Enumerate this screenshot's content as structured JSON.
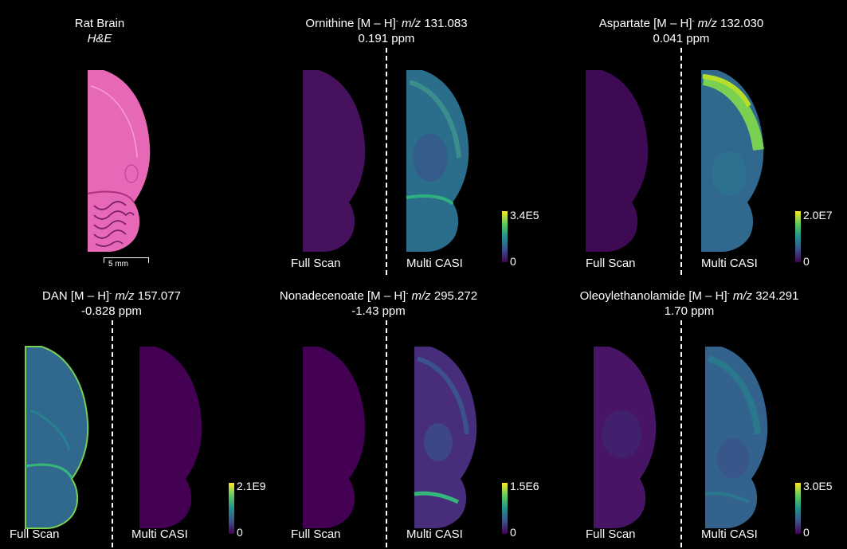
{
  "he_panel": {
    "title": "Rat Brain",
    "subtitle": "H&E",
    "scale_bar": "5 mm"
  },
  "mode_labels": {
    "full": "Full Scan",
    "multi": "Multi CASI"
  },
  "panels": [
    {
      "name": "Ornithine",
      "ion": "[M – H]",
      "charge": "-",
      "mz_label": "m/z",
      "mz": "131.083",
      "ppm": "0.191 ppm",
      "cbar_max": "3.4E5",
      "cbar_min": "0"
    },
    {
      "name": "Aspartate",
      "ion": "[M – H]",
      "charge": "-",
      "mz_label": "m/z",
      "mz": "132.030",
      "ppm": "0.041 ppm",
      "cbar_max": "2.0E7",
      "cbar_min": "0"
    },
    {
      "name": "DAN",
      "ion": "[M – H]",
      "charge": "-",
      "mz_label": "m/z",
      "mz": "157.077",
      "ppm": "-0.828 ppm",
      "cbar_max": "2.1E9",
      "cbar_min": "0"
    },
    {
      "name": "Nonadecenoate",
      "ion": "[M – H]",
      "charge": "-",
      "mz_label": "m/z",
      "mz": "295.272",
      "ppm": "-1.43 ppm",
      "cbar_max": "1.5E6",
      "cbar_min": "0"
    },
    {
      "name": "Oleoylethanolamide",
      "ion": "[M – H]",
      "charge": "-",
      "mz_label": "m/z",
      "mz": "324.291",
      "ppm": "1.70 ppm",
      "cbar_max": "3.0E5",
      "cbar_min": "0"
    }
  ],
  "colors": {
    "background": "#000000",
    "he_pink": "#e868b8",
    "viridis_low": "#440154",
    "viridis_mid": "#21918c",
    "viridis_high": "#fde725"
  }
}
